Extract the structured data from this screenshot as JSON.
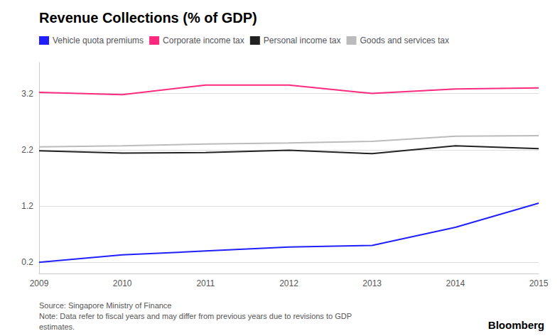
{
  "chart_data": {
    "type": "line",
    "title": "Revenue Collections (% of GDP)",
    "categories": [
      "2009",
      "2010",
      "2011",
      "2012",
      "2013",
      "2014",
      "2015"
    ],
    "series": [
      {
        "name": "Vehicle quota premiums",
        "color": "#1f1fff",
        "values": [
          0.2,
          0.33,
          0.4,
          0.47,
          0.5,
          0.82,
          1.25
        ]
      },
      {
        "name": "Corporate income tax",
        "color": "#ff2a7f",
        "values": [
          3.22,
          3.18,
          3.35,
          3.35,
          3.2,
          3.28,
          3.3
        ]
      },
      {
        "name": "Personal income tax",
        "color": "#222222",
        "values": [
          2.18,
          2.14,
          2.15,
          2.19,
          2.13,
          2.27,
          2.22
        ]
      },
      {
        "name": "Goods and services tax",
        "color": "#bbbbbb",
        "values": [
          2.25,
          2.27,
          2.3,
          2.32,
          2.35,
          2.44,
          2.45
        ]
      }
    ],
    "ylim": [
      0.0,
      3.75
    ],
    "yticks": [
      0.2,
      1.2,
      2.2,
      3.2
    ],
    "grid": true,
    "legend": "upper left",
    "annotations": [
      "Source: Singapore Ministry of Finance\nNote: Data refer to fiscal years and may differ from previous years due to revisions to GDP\nestimates.",
      "Bloomberg"
    ]
  }
}
